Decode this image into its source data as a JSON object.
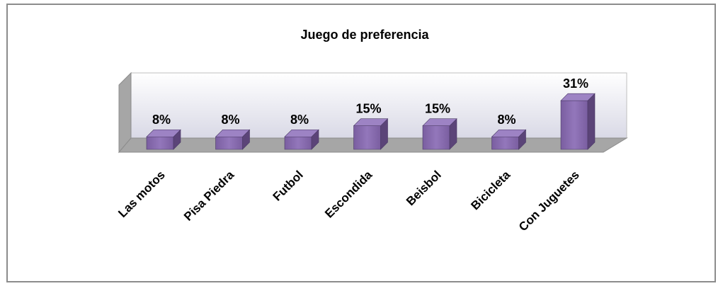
{
  "chart_data": {
    "type": "bar3d",
    "title": "Juego de preferencia",
    "categories": [
      "Las motos",
      "Pisa Piedra",
      "Futbol",
      "Escondida",
      "Beisbol",
      "Bicicleta",
      "Con Juguetes"
    ],
    "values": [
      8,
      8,
      8,
      15,
      15,
      8,
      31
    ],
    "value_labels": [
      "8%",
      "8%",
      "8%",
      "15%",
      "15%",
      "8%",
      "31%"
    ],
    "color": "#8064a2"
  }
}
